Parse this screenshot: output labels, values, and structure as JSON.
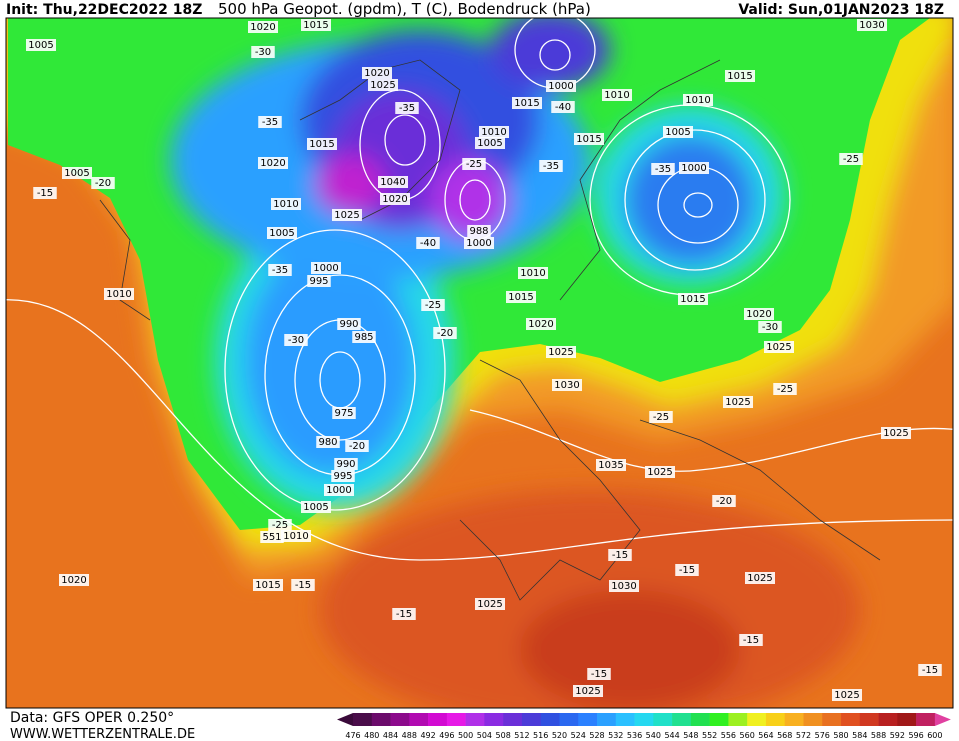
{
  "header": {
    "init": "Init: Thu,22DEC2022 18Z",
    "title": "500 hPa Geopot. (gpdm), T (C), Bodendruck (hPa)",
    "valid": "Valid: Sun,01JAN2023 18Z"
  },
  "footer": {
    "data": "Data: GFS OPER 0.250°",
    "site": "WWW.WETTERZENTRALE.DE"
  },
  "map": {
    "labels": [
      1020,
      1015,
      1005,
      -30,
      1030,
      1020,
      1025,
      1000,
      1015,
      -40,
      1010,
      1010,
      1015,
      -35,
      -35,
      1010,
      1005,
      1015,
      1005,
      1015,
      1020,
      -35,
      -35,
      1000,
      -25,
      1005,
      -20,
      -15,
      1040,
      1020,
      1010,
      1025,
      1005,
      -40,
      988,
      1000,
      1000,
      995,
      -35,
      1010,
      -25,
      1010,
      1015,
      -25,
      1015,
      1020,
      -30,
      990,
      985,
      -20,
      1020,
      -30,
      1025,
      1025,
      1030,
      -25,
      1025,
      975,
      -25,
      1025,
      980,
      -20,
      990,
      995,
      1000,
      1035,
      1025,
      1005,
      -20,
      -25,
      551,
      1010,
      -15,
      -15,
      1025,
      1020,
      1015,
      -15,
      1030,
      1025,
      -15,
      -15,
      -15,
      1025,
      1025,
      -15
    ]
  },
  "colorbar": {
    "labels": [
      476,
      480,
      484,
      488,
      492,
      496,
      500,
      504,
      508,
      512,
      516,
      520,
      524,
      528,
      532,
      536,
      540,
      544,
      548,
      552,
      556,
      560,
      564,
      568,
      572,
      576,
      580,
      584,
      588,
      592,
      596,
      600
    ],
    "colors": [
      "#4a0d4a",
      "#6b0b6b",
      "#8c0a8c",
      "#b10ab1",
      "#d20ad2",
      "#e619e6",
      "#b030e8",
      "#8a2be2",
      "#6a2fd8",
      "#4b3bd8",
      "#2f50e0",
      "#2a68f0",
      "#2a80ff",
      "#2aa0ff",
      "#2ac0ff",
      "#25d8f0",
      "#20e0c8",
      "#20e090",
      "#20e050",
      "#30f020",
      "#9cf020",
      "#f0f020",
      "#f8d018",
      "#f8b020",
      "#f09020",
      "#e87020",
      "#e05020",
      "#d03820",
      "#b82020",
      "#a01818",
      "#c02060"
    ],
    "under_color": "#3a0a3a",
    "over_color": "#e040a0"
  }
}
